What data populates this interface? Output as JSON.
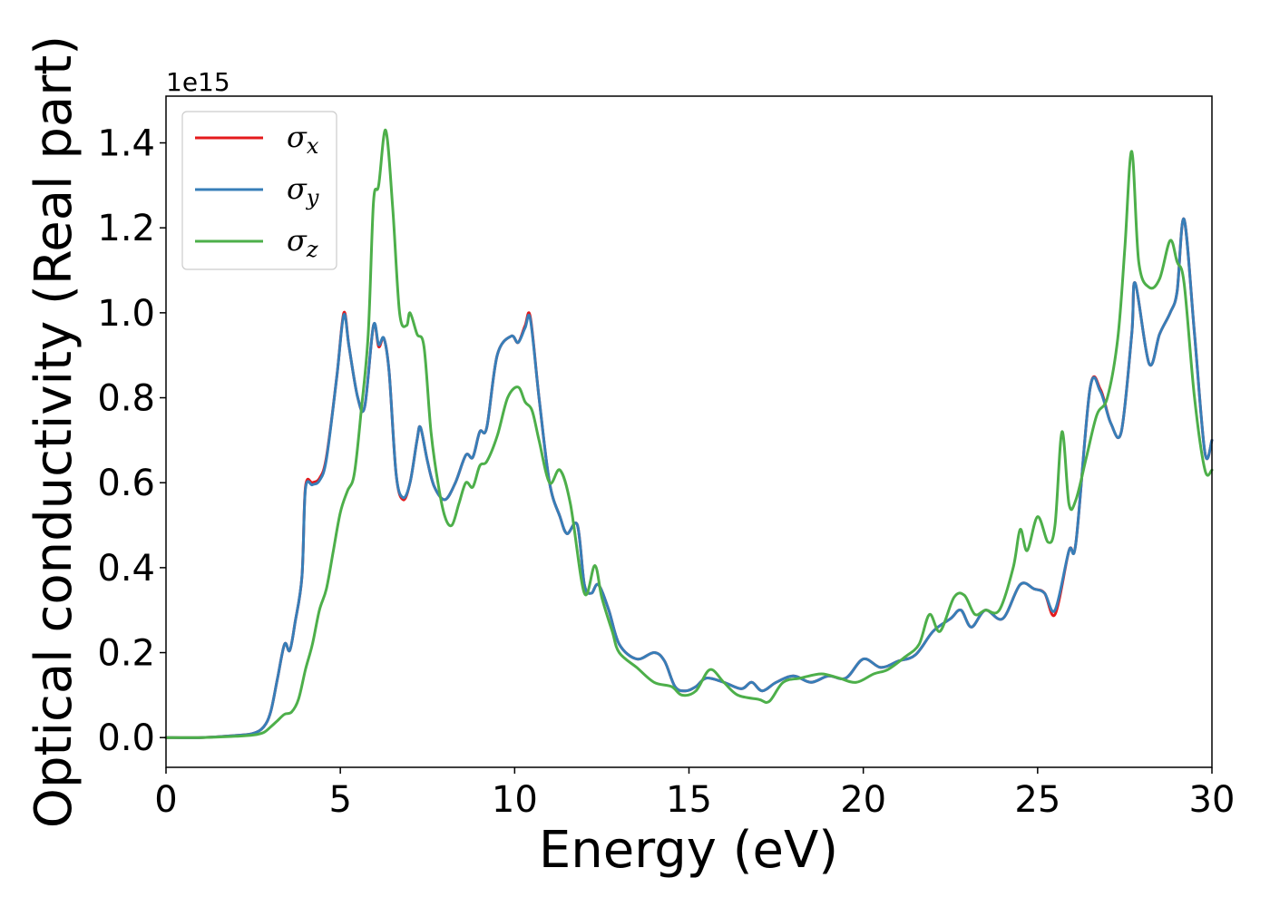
{
  "chart_data": {
    "type": "line",
    "xlabel": "Energy (eV)",
    "ylabel": "Optical conductivity (Real part)",
    "y_offset_label": "1e15",
    "xlim": [
      0,
      30
    ],
    "ylim": [
      -0.07,
      1.51
    ],
    "xticks": [
      0,
      5,
      10,
      15,
      20,
      25,
      30
    ],
    "xtick_labels": [
      "0",
      "5",
      "10",
      "15",
      "20",
      "25",
      "30"
    ],
    "yticks": [
      0.0,
      0.2,
      0.4,
      0.6,
      0.8,
      1.0,
      1.2,
      1.4
    ],
    "ytick_labels": [
      "0.0",
      "0.2",
      "0.4",
      "0.6",
      "0.8",
      "1.0",
      "1.2",
      "1.4"
    ],
    "grid": false,
    "legend_position": "top-left",
    "series": [
      {
        "name": "σx",
        "legend_base": "σ",
        "legend_sub": "x",
        "color": "#e41a1c",
        "points": [
          [
            0,
            0.0
          ],
          [
            1,
            0.0
          ],
          [
            2,
            0.005
          ],
          [
            2.5,
            0.01
          ],
          [
            2.8,
            0.025
          ],
          [
            3.0,
            0.06
          ],
          [
            3.2,
            0.14
          ],
          [
            3.4,
            0.22
          ],
          [
            3.55,
            0.205
          ],
          [
            3.7,
            0.27
          ],
          [
            3.9,
            0.38
          ],
          [
            4.0,
            0.59
          ],
          [
            4.2,
            0.6
          ],
          [
            4.4,
            0.61
          ],
          [
            4.6,
            0.66
          ],
          [
            4.9,
            0.85
          ],
          [
            5.1,
            1.0
          ],
          [
            5.25,
            0.92
          ],
          [
            5.5,
            0.8
          ],
          [
            5.7,
            0.78
          ],
          [
            5.95,
            0.97
          ],
          [
            6.1,
            0.92
          ],
          [
            6.25,
            0.94
          ],
          [
            6.4,
            0.86
          ],
          [
            6.6,
            0.62
          ],
          [
            6.8,
            0.56
          ],
          [
            7.0,
            0.6
          ],
          [
            7.2,
            0.7
          ],
          [
            7.3,
            0.73
          ],
          [
            7.5,
            0.65
          ],
          [
            7.7,
            0.59
          ],
          [
            8.0,
            0.56
          ],
          [
            8.3,
            0.6
          ],
          [
            8.6,
            0.665
          ],
          [
            8.8,
            0.66
          ],
          [
            9.0,
            0.72
          ],
          [
            9.2,
            0.73
          ],
          [
            9.5,
            0.9
          ],
          [
            9.9,
            0.945
          ],
          [
            10.1,
            0.93
          ],
          [
            10.3,
            0.97
          ],
          [
            10.45,
            0.99
          ],
          [
            10.7,
            0.8
          ],
          [
            11.0,
            0.6
          ],
          [
            11.3,
            0.52
          ],
          [
            11.5,
            0.48
          ],
          [
            11.8,
            0.5
          ],
          [
            12.0,
            0.36
          ],
          [
            12.2,
            0.34
          ],
          [
            12.4,
            0.36
          ],
          [
            12.7,
            0.3
          ],
          [
            13.0,
            0.22
          ],
          [
            13.5,
            0.185
          ],
          [
            14.0,
            0.2
          ],
          [
            14.3,
            0.18
          ],
          [
            14.6,
            0.12
          ],
          [
            14.9,
            0.11
          ],
          [
            15.2,
            0.12
          ],
          [
            15.5,
            0.14
          ],
          [
            16.0,
            0.13
          ],
          [
            16.5,
            0.115
          ],
          [
            16.8,
            0.13
          ],
          [
            17.1,
            0.11
          ],
          [
            17.5,
            0.13
          ],
          [
            18.0,
            0.145
          ],
          [
            18.5,
            0.13
          ],
          [
            19.0,
            0.145
          ],
          [
            19.5,
            0.14
          ],
          [
            20.0,
            0.185
          ],
          [
            20.5,
            0.165
          ],
          [
            21.0,
            0.18
          ],
          [
            21.5,
            0.195
          ],
          [
            22.0,
            0.25
          ],
          [
            22.5,
            0.28
          ],
          [
            22.8,
            0.3
          ],
          [
            23.1,
            0.26
          ],
          [
            23.5,
            0.3
          ],
          [
            24.0,
            0.28
          ],
          [
            24.5,
            0.36
          ],
          [
            24.9,
            0.35
          ],
          [
            25.2,
            0.34
          ],
          [
            25.5,
            0.29
          ],
          [
            25.9,
            0.44
          ],
          [
            26.1,
            0.46
          ],
          [
            26.5,
            0.82
          ],
          [
            26.8,
            0.82
          ],
          [
            27.1,
            0.74
          ],
          [
            27.4,
            0.72
          ],
          [
            27.7,
            0.95
          ],
          [
            27.8,
            1.07
          ],
          [
            28.2,
            0.88
          ],
          [
            28.5,
            0.95
          ],
          [
            28.8,
            1.0
          ],
          [
            29.0,
            1.05
          ],
          [
            29.2,
            1.22
          ],
          [
            29.5,
            0.95
          ],
          [
            29.8,
            0.67
          ],
          [
            30.0,
            0.7
          ]
        ]
      },
      {
        "name": "σy",
        "legend_base": "σ",
        "legend_sub": "y",
        "color": "#377eb8",
        "points": [
          [
            0,
            0.0
          ],
          [
            1,
            0.0
          ],
          [
            2,
            0.005
          ],
          [
            2.5,
            0.01
          ],
          [
            2.8,
            0.025
          ],
          [
            3.0,
            0.06
          ],
          [
            3.2,
            0.14
          ],
          [
            3.4,
            0.22
          ],
          [
            3.55,
            0.205
          ],
          [
            3.7,
            0.27
          ],
          [
            3.9,
            0.38
          ],
          [
            4.0,
            0.585
          ],
          [
            4.2,
            0.595
          ],
          [
            4.4,
            0.605
          ],
          [
            4.6,
            0.655
          ],
          [
            4.9,
            0.85
          ],
          [
            5.1,
            0.995
          ],
          [
            5.25,
            0.92
          ],
          [
            5.5,
            0.8
          ],
          [
            5.7,
            0.78
          ],
          [
            5.95,
            0.97
          ],
          [
            6.1,
            0.925
          ],
          [
            6.25,
            0.94
          ],
          [
            6.4,
            0.86
          ],
          [
            6.6,
            0.62
          ],
          [
            6.8,
            0.565
          ],
          [
            7.0,
            0.6
          ],
          [
            7.2,
            0.7
          ],
          [
            7.3,
            0.73
          ],
          [
            7.5,
            0.65
          ],
          [
            7.7,
            0.59
          ],
          [
            8.0,
            0.56
          ],
          [
            8.3,
            0.6
          ],
          [
            8.6,
            0.665
          ],
          [
            8.8,
            0.66
          ],
          [
            9.0,
            0.72
          ],
          [
            9.2,
            0.73
          ],
          [
            9.5,
            0.9
          ],
          [
            9.9,
            0.945
          ],
          [
            10.1,
            0.93
          ],
          [
            10.3,
            0.965
          ],
          [
            10.45,
            0.985
          ],
          [
            10.7,
            0.8
          ],
          [
            11.0,
            0.6
          ],
          [
            11.3,
            0.52
          ],
          [
            11.5,
            0.48
          ],
          [
            11.8,
            0.5
          ],
          [
            12.0,
            0.36
          ],
          [
            12.2,
            0.34
          ],
          [
            12.4,
            0.36
          ],
          [
            12.7,
            0.3
          ],
          [
            13.0,
            0.22
          ],
          [
            13.5,
            0.185
          ],
          [
            14.0,
            0.2
          ],
          [
            14.3,
            0.18
          ],
          [
            14.6,
            0.12
          ],
          [
            14.9,
            0.11
          ],
          [
            15.2,
            0.12
          ],
          [
            15.5,
            0.14
          ],
          [
            16.0,
            0.13
          ],
          [
            16.5,
            0.115
          ],
          [
            16.8,
            0.13
          ],
          [
            17.1,
            0.11
          ],
          [
            17.5,
            0.13
          ],
          [
            18.0,
            0.145
          ],
          [
            18.5,
            0.13
          ],
          [
            19.0,
            0.145
          ],
          [
            19.5,
            0.14
          ],
          [
            20.0,
            0.185
          ],
          [
            20.5,
            0.165
          ],
          [
            21.0,
            0.18
          ],
          [
            21.5,
            0.195
          ],
          [
            22.0,
            0.25
          ],
          [
            22.5,
            0.28
          ],
          [
            22.8,
            0.3
          ],
          [
            23.1,
            0.26
          ],
          [
            23.5,
            0.3
          ],
          [
            24.0,
            0.28
          ],
          [
            24.5,
            0.36
          ],
          [
            24.9,
            0.35
          ],
          [
            25.2,
            0.34
          ],
          [
            25.5,
            0.3
          ],
          [
            25.9,
            0.44
          ],
          [
            26.1,
            0.46
          ],
          [
            26.5,
            0.82
          ],
          [
            26.8,
            0.815
          ],
          [
            27.1,
            0.74
          ],
          [
            27.4,
            0.72
          ],
          [
            27.7,
            0.95
          ],
          [
            27.8,
            1.07
          ],
          [
            28.2,
            0.88
          ],
          [
            28.5,
            0.95
          ],
          [
            28.8,
            1.0
          ],
          [
            29.0,
            1.05
          ],
          [
            29.2,
            1.22
          ],
          [
            29.5,
            0.95
          ],
          [
            29.8,
            0.67
          ],
          [
            30.0,
            0.7
          ]
        ]
      },
      {
        "name": "σz",
        "legend_base": "σ",
        "legend_sub": "z",
        "color": "#4daf4a",
        "points": [
          [
            0,
            0.0
          ],
          [
            1,
            0.0
          ],
          [
            2,
            0.003
          ],
          [
            2.5,
            0.006
          ],
          [
            2.8,
            0.012
          ],
          [
            3.0,
            0.025
          ],
          [
            3.2,
            0.04
          ],
          [
            3.4,
            0.055
          ],
          [
            3.6,
            0.06
          ],
          [
            3.8,
            0.09
          ],
          [
            4.0,
            0.16
          ],
          [
            4.2,
            0.22
          ],
          [
            4.4,
            0.3
          ],
          [
            4.6,
            0.35
          ],
          [
            4.8,
            0.44
          ],
          [
            5.0,
            0.53
          ],
          [
            5.2,
            0.58
          ],
          [
            5.4,
            0.62
          ],
          [
            5.6,
            0.77
          ],
          [
            5.8,
            0.95
          ],
          [
            5.95,
            1.26
          ],
          [
            6.1,
            1.3
          ],
          [
            6.3,
            1.43
          ],
          [
            6.5,
            1.25
          ],
          [
            6.7,
            1.0
          ],
          [
            6.9,
            0.97
          ],
          [
            7.0,
            1.0
          ],
          [
            7.2,
            0.95
          ],
          [
            7.4,
            0.92
          ],
          [
            7.6,
            0.72
          ],
          [
            7.8,
            0.6
          ],
          [
            8.0,
            0.52
          ],
          [
            8.2,
            0.5
          ],
          [
            8.4,
            0.55
          ],
          [
            8.6,
            0.6
          ],
          [
            8.8,
            0.59
          ],
          [
            9.0,
            0.64
          ],
          [
            9.2,
            0.65
          ],
          [
            9.5,
            0.71
          ],
          [
            9.8,
            0.8
          ],
          [
            10.1,
            0.825
          ],
          [
            10.3,
            0.79
          ],
          [
            10.5,
            0.77
          ],
          [
            10.7,
            0.7
          ],
          [
            11.0,
            0.6
          ],
          [
            11.3,
            0.63
          ],
          [
            11.6,
            0.55
          ],
          [
            12.0,
            0.34
          ],
          [
            12.3,
            0.405
          ],
          [
            12.5,
            0.33
          ],
          [
            12.8,
            0.25
          ],
          [
            13.0,
            0.2
          ],
          [
            13.5,
            0.165
          ],
          [
            14.0,
            0.13
          ],
          [
            14.5,
            0.12
          ],
          [
            14.8,
            0.1
          ],
          [
            15.2,
            0.11
          ],
          [
            15.6,
            0.16
          ],
          [
            16.0,
            0.13
          ],
          [
            16.4,
            0.1
          ],
          [
            17.0,
            0.09
          ],
          [
            17.3,
            0.085
          ],
          [
            17.7,
            0.13
          ],
          [
            18.2,
            0.14
          ],
          [
            18.8,
            0.15
          ],
          [
            19.3,
            0.14
          ],
          [
            19.8,
            0.13
          ],
          [
            20.3,
            0.15
          ],
          [
            20.7,
            0.16
          ],
          [
            21.2,
            0.19
          ],
          [
            21.6,
            0.22
          ],
          [
            21.9,
            0.29
          ],
          [
            22.2,
            0.25
          ],
          [
            22.6,
            0.33
          ],
          [
            22.9,
            0.335
          ],
          [
            23.2,
            0.29
          ],
          [
            23.5,
            0.3
          ],
          [
            23.9,
            0.3
          ],
          [
            24.3,
            0.4
          ],
          [
            24.5,
            0.49
          ],
          [
            24.7,
            0.44
          ],
          [
            25.0,
            0.52
          ],
          [
            25.3,
            0.46
          ],
          [
            25.5,
            0.5
          ],
          [
            25.7,
            0.72
          ],
          [
            25.9,
            0.55
          ],
          [
            26.1,
            0.56
          ],
          [
            26.4,
            0.66
          ],
          [
            26.7,
            0.76
          ],
          [
            27.0,
            0.8
          ],
          [
            27.3,
            0.94
          ],
          [
            27.5,
            1.15
          ],
          [
            27.7,
            1.38
          ],
          [
            27.9,
            1.12
          ],
          [
            28.2,
            1.06
          ],
          [
            28.5,
            1.08
          ],
          [
            28.8,
            1.17
          ],
          [
            29.0,
            1.12
          ],
          [
            29.2,
            1.07
          ],
          [
            29.5,
            0.8
          ],
          [
            29.8,
            0.63
          ],
          [
            30.0,
            0.63
          ]
        ]
      }
    ]
  }
}
